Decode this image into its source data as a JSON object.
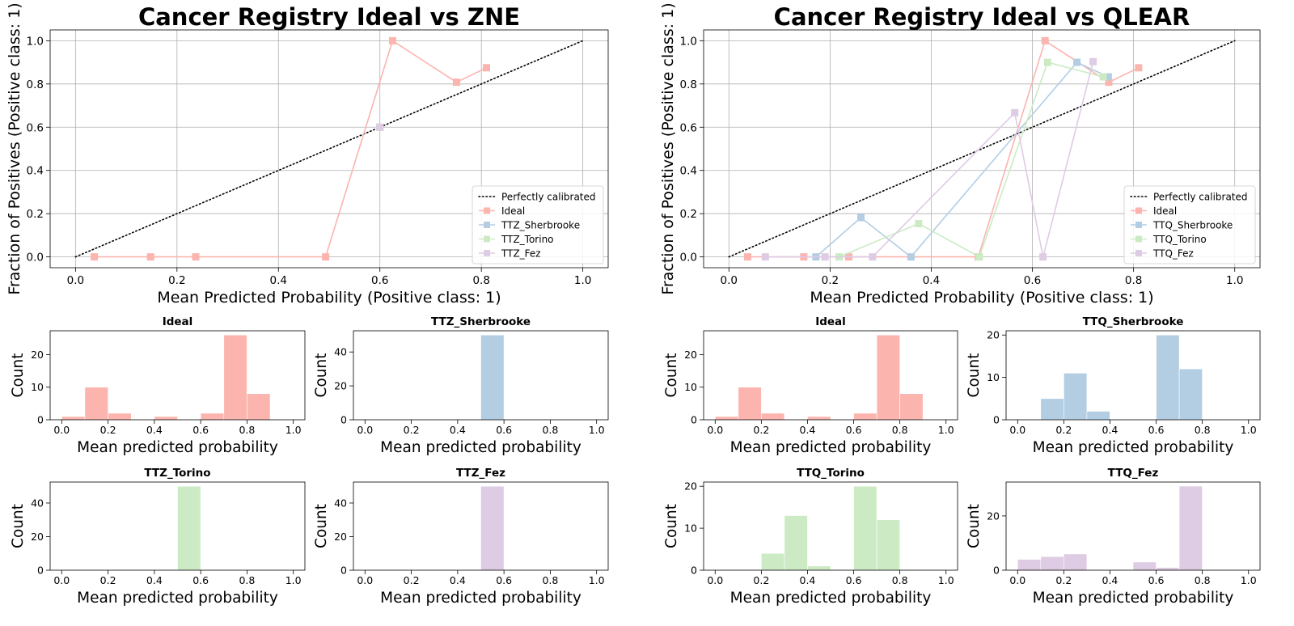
{
  "colors": {
    "Ideal": "#fbb4ae",
    "Sherbrooke": "#b3cde3",
    "Torino": "#ccebc5",
    "Fez": "#decbe4",
    "perfect": "#000000"
  },
  "chart_data": [
    {
      "type": "line",
      "id": "zne-calibration",
      "title": "Cancer Registry Ideal vs ZNE",
      "xlabel": "Mean Predicted Probability (Positive class: 1)",
      "ylabel": "Fraction of Positives (Positive class: 1)",
      "xlim": [
        -0.05,
        1.05
      ],
      "ylim": [
        -0.05,
        1.05
      ],
      "xticks": [
        "0.0",
        "0.2",
        "0.4",
        "0.6",
        "0.8",
        "1.0"
      ],
      "yticks": [
        "0.0",
        "0.2",
        "0.4",
        "0.6",
        "0.8",
        "1.0"
      ],
      "grid": true,
      "legend_position": "lower-right",
      "reference": {
        "name": "Perfectly calibrated",
        "x": [
          0,
          1
        ],
        "y": [
          0,
          1
        ]
      },
      "series": [
        {
          "name": "Ideal",
          "color_key": "Ideal",
          "x": [
            0.037,
            0.148,
            0.237,
            0.493,
            0.625,
            0.751,
            0.81
          ],
          "y": [
            0.0,
            0.0,
            0.0,
            0.0,
            1.0,
            0.808,
            0.875
          ]
        },
        {
          "name": "TTZ_Sherbrooke",
          "color_key": "Sherbrooke",
          "x": [
            0.6
          ],
          "y": [
            0.6
          ]
        },
        {
          "name": "TTZ_Torino",
          "color_key": "Torino",
          "x": [
            0.6
          ],
          "y": [
            0.6
          ]
        },
        {
          "name": "TTZ_Fez",
          "color_key": "Fez",
          "x": [
            0.6
          ],
          "y": [
            0.6
          ]
        }
      ]
    },
    {
      "type": "line",
      "id": "qlear-calibration",
      "title": "Cancer Registry Ideal vs QLEAR",
      "xlabel": "Mean Predicted Probability (Positive class: 1)",
      "ylabel": "Fraction of Positives (Positive class: 1)",
      "xlim": [
        -0.05,
        1.05
      ],
      "ylim": [
        -0.05,
        1.05
      ],
      "xticks": [
        "0.0",
        "0.2",
        "0.4",
        "0.6",
        "0.8",
        "1.0"
      ],
      "yticks": [
        "0.0",
        "0.2",
        "0.4",
        "0.6",
        "0.8",
        "1.0"
      ],
      "grid": true,
      "legend_position": "lower-right",
      "reference": {
        "name": "Perfectly calibrated",
        "x": [
          0,
          1
        ],
        "y": [
          0,
          1
        ]
      },
      "series": [
        {
          "name": "Ideal",
          "color_key": "Ideal",
          "x": [
            0.037,
            0.148,
            0.237,
            0.493,
            0.625,
            0.751,
            0.81
          ],
          "y": [
            0.0,
            0.0,
            0.0,
            0.0,
            1.0,
            0.808,
            0.875
          ]
        },
        {
          "name": "TTQ_Sherbrooke",
          "color_key": "Sherbrooke",
          "x": [
            0.172,
            0.261,
            0.36,
            0.688,
            0.75
          ],
          "y": [
            0.0,
            0.182,
            0.0,
            0.9,
            0.833
          ]
        },
        {
          "name": "TTQ_Torino",
          "color_key": "Torino",
          "x": [
            0.218,
            0.375,
            0.495,
            0.63,
            0.74
          ],
          "y": [
            0.0,
            0.154,
            0.0,
            0.9,
            0.833
          ]
        },
        {
          "name": "TTQ_Fez",
          "color_key": "Fez",
          "x": [
            0.072,
            0.19,
            0.284,
            0.565,
            0.621,
            0.72
          ],
          "y": [
            0.0,
            0.0,
            0.0,
            0.667,
            0.0,
            0.903
          ]
        }
      ]
    },
    {
      "type": "bar",
      "id": "zne-hist-ideal",
      "title": "Ideal",
      "color_key": "Ideal",
      "bin_edges": [
        0.0,
        0.1,
        0.2,
        0.3,
        0.4,
        0.5,
        0.6,
        0.7,
        0.8,
        0.9,
        1.0
      ],
      "values": [
        1,
        10,
        2,
        0,
        1,
        0,
        2,
        26,
        8,
        0
      ],
      "xlabel": "Mean predicted probability",
      "ylabel": "Count",
      "xlim": [
        -0.05,
        1.05
      ],
      "ylim": [
        0,
        27.3
      ],
      "xticks": [
        "0.0",
        "0.2",
        "0.4",
        "0.6",
        "0.8",
        "1.0"
      ],
      "yticks": [
        0,
        10,
        20
      ]
    },
    {
      "type": "bar",
      "id": "zne-hist-sherbrooke",
      "title": "TTZ_Sherbrooke",
      "color_key": "Sherbrooke",
      "bin_edges": [
        0.0,
        0.1,
        0.2,
        0.3,
        0.4,
        0.5,
        0.6,
        0.7,
        0.8,
        0.9,
        1.0
      ],
      "values": [
        0,
        0,
        0,
        0,
        0,
        50,
        0,
        0,
        0,
        0
      ],
      "xlabel": "Mean predicted probability",
      "ylabel": "Count",
      "xlim": [
        -0.05,
        1.05
      ],
      "ylim": [
        0,
        52.5
      ],
      "xticks": [
        "0.0",
        "0.2",
        "0.4",
        "0.6",
        "0.8",
        "1.0"
      ],
      "yticks": [
        0,
        20,
        40
      ]
    },
    {
      "type": "bar",
      "id": "qlear-hist-ideal",
      "title": "Ideal",
      "color_key": "Ideal",
      "bin_edges": [
        0.0,
        0.1,
        0.2,
        0.3,
        0.4,
        0.5,
        0.6,
        0.7,
        0.8,
        0.9,
        1.0
      ],
      "values": [
        1,
        10,
        2,
        0,
        1,
        0,
        2,
        26,
        8,
        0
      ],
      "xlabel": "Mean predicted probability",
      "ylabel": "Count",
      "xlim": [
        -0.05,
        1.05
      ],
      "ylim": [
        0,
        27.3
      ],
      "xticks": [
        "0.0",
        "0.2",
        "0.4",
        "0.6",
        "0.8",
        "1.0"
      ],
      "yticks": [
        0,
        10,
        20
      ]
    },
    {
      "type": "bar",
      "id": "qlear-hist-sherbrooke",
      "title": "TTQ_Sherbrooke",
      "color_key": "Sherbrooke",
      "bin_edges": [
        0.0,
        0.1,
        0.2,
        0.3,
        0.4,
        0.5,
        0.6,
        0.7,
        0.8,
        0.9,
        1.0
      ],
      "values": [
        0,
        5,
        11,
        2,
        0,
        0,
        20,
        12,
        0,
        0
      ],
      "xlabel": "Mean predicted probability",
      "ylabel": "Count",
      "xlim": [
        -0.05,
        1.05
      ],
      "ylim": [
        0,
        21
      ],
      "xticks": [
        "0.0",
        "0.2",
        "0.4",
        "0.6",
        "0.8",
        "1.0"
      ],
      "yticks": [
        0,
        10,
        20
      ]
    },
    {
      "type": "bar",
      "id": "zne-hist-torino",
      "title": "TTZ_Torino",
      "color_key": "Torino",
      "bin_edges": [
        0.0,
        0.1,
        0.2,
        0.3,
        0.4,
        0.5,
        0.6,
        0.7,
        0.8,
        0.9,
        1.0
      ],
      "values": [
        0,
        0,
        0,
        0,
        0,
        50,
        0,
        0,
        0,
        0
      ],
      "xlabel": "Mean predicted probability",
      "ylabel": "Count",
      "xlim": [
        -0.05,
        1.05
      ],
      "ylim": [
        0,
        52.5
      ],
      "xticks": [
        "0.0",
        "0.2",
        "0.4",
        "0.6",
        "0.8",
        "1.0"
      ],
      "yticks": [
        0,
        20,
        40
      ]
    },
    {
      "type": "bar",
      "id": "zne-hist-fez",
      "title": "TTZ_Fez",
      "color_key": "Fez",
      "bin_edges": [
        0.0,
        0.1,
        0.2,
        0.3,
        0.4,
        0.5,
        0.6,
        0.7,
        0.8,
        0.9,
        1.0
      ],
      "values": [
        0,
        0,
        0,
        0,
        0,
        50,
        0,
        0,
        0,
        0
      ],
      "xlabel": "Mean predicted probability",
      "ylabel": "Count",
      "xlim": [
        -0.05,
        1.05
      ],
      "ylim": [
        0,
        52.5
      ],
      "xticks": [
        "0.0",
        "0.2",
        "0.4",
        "0.6",
        "0.8",
        "1.0"
      ],
      "yticks": [
        0,
        20,
        40
      ]
    },
    {
      "type": "bar",
      "id": "qlear-hist-torino",
      "title": "TTQ_Torino",
      "color_key": "Torino",
      "bin_edges": [
        0.0,
        0.1,
        0.2,
        0.3,
        0.4,
        0.5,
        0.6,
        0.7,
        0.8,
        0.9,
        1.0
      ],
      "values": [
        0,
        0,
        4,
        13,
        1,
        0,
        20,
        12,
        0,
        0
      ],
      "xlabel": "Mean predicted probability",
      "ylabel": "Count",
      "xlim": [
        -0.05,
        1.05
      ],
      "ylim": [
        0,
        21
      ],
      "xticks": [
        "0.0",
        "0.2",
        "0.4",
        "0.6",
        "0.8",
        "1.0"
      ],
      "yticks": [
        0,
        10,
        20
      ]
    },
    {
      "type": "bar",
      "id": "qlear-hist-fez",
      "title": "TTQ_Fez",
      "color_key": "Fez",
      "bin_edges": [
        0.0,
        0.1,
        0.2,
        0.3,
        0.4,
        0.5,
        0.6,
        0.7,
        0.8,
        0.9,
        1.0
      ],
      "values": [
        4,
        5,
        6,
        0,
        0,
        3,
        1,
        31,
        0,
        0
      ],
      "xlabel": "Mean predicted probability",
      "ylabel": "Count",
      "xlim": [
        -0.05,
        1.05
      ],
      "ylim": [
        0,
        32.5
      ],
      "xticks": [
        "0.0",
        "0.2",
        "0.4",
        "0.6",
        "0.8",
        "1.0"
      ],
      "yticks": [
        0,
        20
      ]
    }
  ]
}
